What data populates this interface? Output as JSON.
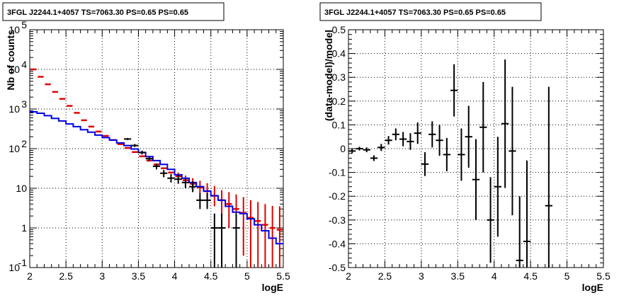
{
  "chart_data": [
    {
      "type": "histogram-with-errorbars",
      "title": "3FGL J2244.1+4057 TS=7063.30 PS=0.65 PS=0.65",
      "xlabel": "logE",
      "ylabel": "Nb of counts",
      "xlim": [
        2,
        5.5
      ],
      "ylim": [
        0.1,
        100000
      ],
      "yscale": "log",
      "grid": true,
      "x_ticks": [
        "2",
        "2.5",
        "3",
        "3.5",
        "4",
        "4.5",
        "5",
        "5.5"
      ],
      "y_ticks": [
        {
          "value": 0.1,
          "base": "10",
          "exp": "-1"
        },
        {
          "value": 1,
          "base": "1",
          "exp": ""
        },
        {
          "value": 10,
          "base": "10",
          "exp": ""
        },
        {
          "value": 100,
          "base": "10",
          "exp": "2"
        },
        {
          "value": 1000,
          "base": "10",
          "exp": "3"
        },
        {
          "value": 10000,
          "base": "10",
          "exp": "4"
        },
        {
          "value": 100000,
          "base": "10",
          "exp": "5"
        }
      ],
      "colors": {
        "data": "#000000",
        "model_total": "#e00000",
        "model_source": "#0000e6"
      },
      "bin_edges": [
        2.0,
        2.1,
        2.2,
        2.3,
        2.4,
        2.5,
        2.6,
        2.7,
        2.8,
        2.9,
        3.0,
        3.1,
        3.2,
        3.3,
        3.4,
        3.5,
        3.6,
        3.7,
        3.8,
        3.9,
        4.0,
        4.1,
        4.2,
        4.3,
        4.4,
        4.5,
        4.6,
        4.7,
        4.8,
        4.9,
        5.0,
        5.1,
        5.2,
        5.3,
        5.4,
        5.5
      ],
      "data_points": [
        {
          "x": 3.35,
          "y": 175,
          "lo": 165,
          "hi": 185
        },
        {
          "x": 3.45,
          "y": 120,
          "lo": 110,
          "hi": 131
        },
        {
          "x": 3.55,
          "y": 80,
          "lo": 71,
          "hi": 89
        },
        {
          "x": 3.65,
          "y": 56,
          "lo": 49,
          "hi": 64
        },
        {
          "x": 3.75,
          "y": 36,
          "lo": 30,
          "hi": 42
        },
        {
          "x": 3.85,
          "y": 24,
          "lo": 19,
          "hi": 29
        },
        {
          "x": 3.95,
          "y": 18,
          "lo": 14,
          "hi": 23
        },
        {
          "x": 4.05,
          "y": 17,
          "lo": 13,
          "hi": 22
        },
        {
          "x": 4.15,
          "y": 14,
          "lo": 10,
          "hi": 18
        },
        {
          "x": 4.25,
          "y": 11,
          "lo": 8,
          "hi": 15
        },
        {
          "x": 4.35,
          "y": 5,
          "lo": 3,
          "hi": 7.5
        },
        {
          "x": 4.45,
          "y": 5,
          "lo": 3,
          "hi": 7.5
        },
        {
          "x": 4.55,
          "y": 1,
          "lo": 0.1,
          "hi": 2.3
        },
        {
          "x": 4.65,
          "y": 1,
          "lo": 0.1,
          "hi": 2.3
        },
        {
          "x": 4.85,
          "y": 1,
          "lo": 0.1,
          "hi": 2.3
        }
      ],
      "series": [
        {
          "role": "model_total",
          "values": [
            10000,
            6500,
            4200,
            2700,
            1800,
            1200,
            800,
            520,
            360,
            270,
            210,
            165,
            130,
            104,
            82,
            64,
            50,
            40,
            32,
            25,
            20,
            16,
            13,
            10.5,
            8.5,
            6.5,
            5,
            4,
            3,
            2.4,
            1.8,
            1.5,
            1.2,
            1.0,
            0.9
          ],
          "err_lo": [
            0,
            0,
            0,
            0,
            0,
            0,
            0,
            0,
            0,
            0,
            0,
            0,
            0,
            0,
            0,
            0,
            0,
            0,
            0,
            0,
            0,
            0,
            3,
            3,
            3,
            3,
            3,
            3,
            2.4,
            2.2,
            1.7,
            1.4,
            1.1,
            0.9,
            0.8
          ],
          "err_hi": [
            0,
            0,
            0,
            0,
            0,
            0,
            0,
            0,
            0,
            0,
            0,
            0,
            0,
            0,
            0,
            0,
            0,
            0,
            0,
            0,
            5,
            5,
            5,
            5,
            5,
            5,
            4,
            4,
            4,
            3.6,
            3.2,
            3,
            2.8,
            2.6,
            2.6
          ]
        },
        {
          "role": "model_source",
          "values": [
            850,
            780,
            680,
            580,
            500,
            420,
            360,
            300,
            260,
            220,
            190,
            165,
            140,
            120,
            98,
            80,
            63,
            50,
            40,
            30,
            22,
            18,
            14,
            11,
            8.5,
            6.5,
            5,
            3.5,
            2.5,
            2.3,
            1.7,
            1.2,
            0.85,
            0.55,
            0.4
          ]
        }
      ]
    },
    {
      "type": "scatter-with-errorbars",
      "title": "3FGL J2244.1+4057 TS=7063.30 PS=0.65 PS=0.65",
      "xlabel": "logE",
      "ylabel": "(data-model)/model",
      "xlim": [
        2,
        5.5
      ],
      "ylim": [
        -0.5,
        0.5
      ],
      "grid": true,
      "x_ticks": [
        "2",
        "2.5",
        "3",
        "3.5",
        "4",
        "4.5",
        "5",
        "5.5"
      ],
      "y_ticks": [
        "-0.5",
        "-0.4",
        "-0.3",
        "-0.2",
        "-0.1",
        "0",
        "0.1",
        "0.2",
        "0.3",
        "0.4",
        "0.5"
      ],
      "colors": {
        "points": "#000000"
      },
      "points": [
        {
          "x": 2.05,
          "y": -0.01,
          "err": 0.01
        },
        {
          "x": 2.15,
          "y": 0.0,
          "err": 0.008
        },
        {
          "x": 2.25,
          "y": -0.005,
          "err": 0.01
        },
        {
          "x": 2.35,
          "y": -0.04,
          "err": 0.012
        },
        {
          "x": 2.45,
          "y": 0.005,
          "err": 0.015
        },
        {
          "x": 2.55,
          "y": 0.035,
          "err": 0.018
        },
        {
          "x": 2.65,
          "y": 0.06,
          "err": 0.025
        },
        {
          "x": 2.75,
          "y": 0.04,
          "err": 0.03
        },
        {
          "x": 2.85,
          "y": 0.03,
          "err": 0.035
        },
        {
          "x": 2.95,
          "y": 0.065,
          "err": 0.045
        },
        {
          "x": 3.05,
          "y": -0.065,
          "err": 0.05
        },
        {
          "x": 3.15,
          "y": 0.06,
          "err": 0.055
        },
        {
          "x": 3.25,
          "y": 0.035,
          "err": 0.065
        },
        {
          "x": 3.35,
          "y": -0.025,
          "err": 0.07
        },
        {
          "x": 3.45,
          "y": 0.245,
          "err": 0.11
        },
        {
          "x": 3.55,
          "y": -0.025,
          "err": 0.11
        },
        {
          "x": 3.65,
          "y": 0.05,
          "err": 0.13
        },
        {
          "x": 3.75,
          "y": -0.13,
          "err": 0.17
        },
        {
          "x": 3.85,
          "y": 0.09,
          "err": 0.19
        },
        {
          "x": 3.95,
          "y": -0.3,
          "err": 0.18
        },
        {
          "x": 4.05,
          "y": -0.16,
          "err": 0.21
        },
        {
          "x": 4.15,
          "y": 0.105,
          "err": 0.27
        },
        {
          "x": 4.25,
          "y": -0.01,
          "err": 0.27
        },
        {
          "x": 4.35,
          "y": -0.47,
          "err": 0.27
        },
        {
          "x": 4.45,
          "y": -0.39,
          "err": 0.34
        },
        {
          "x": 4.75,
          "y": -0.24,
          "err": 0.5
        }
      ]
    }
  ]
}
